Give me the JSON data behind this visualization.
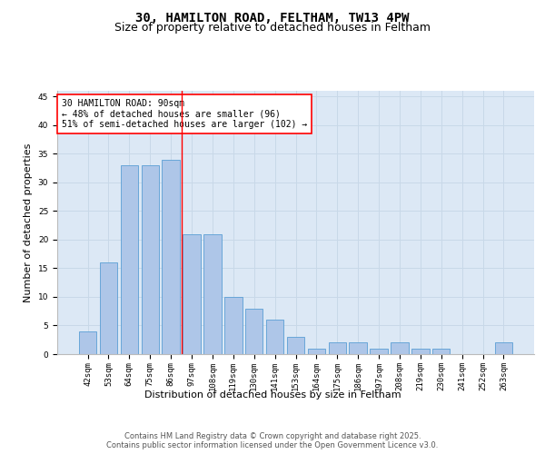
{
  "title_line1": "30, HAMILTON ROAD, FELTHAM, TW13 4PW",
  "title_line2": "Size of property relative to detached houses in Feltham",
  "xlabel": "Distribution of detached houses by size in Feltham",
  "ylabel": "Number of detached properties",
  "categories": [
    "42sqm",
    "53sqm",
    "64sqm",
    "75sqm",
    "86sqm",
    "97sqm",
    "108sqm",
    "119sqm",
    "130sqm",
    "141sqm",
    "153sqm",
    "164sqm",
    "175sqm",
    "186sqm",
    "197sqm",
    "208sqm",
    "219sqm",
    "230sqm",
    "241sqm",
    "252sqm",
    "263sqm"
  ],
  "values": [
    4,
    16,
    33,
    33,
    34,
    21,
    21,
    10,
    8,
    6,
    3,
    1,
    2,
    2,
    1,
    2,
    1,
    1,
    0,
    0,
    2
  ],
  "bar_color": "#aec6e8",
  "bar_edge_color": "#5a9fd4",
  "grid_color": "#c8d8e8",
  "background_color": "#dce8f5",
  "annotation_box_text": "30 HAMILTON ROAD: 90sqm\n← 48% of detached houses are smaller (96)\n51% of semi-detached houses are larger (102) →",
  "annotation_box_color": "white",
  "annotation_box_edge_color": "red",
  "vline_x_index": 4,
  "vline_color": "red",
  "ylim": [
    0,
    46
  ],
  "yticks": [
    0,
    5,
    10,
    15,
    20,
    25,
    30,
    35,
    40,
    45
  ],
  "footer_text": "Contains HM Land Registry data © Crown copyright and database right 2025.\nContains public sector information licensed under the Open Government Licence v3.0.",
  "title_fontsize": 10,
  "subtitle_fontsize": 9,
  "axis_label_fontsize": 8,
  "tick_fontsize": 6.5,
  "annotation_fontsize": 7,
  "footer_fontsize": 6
}
